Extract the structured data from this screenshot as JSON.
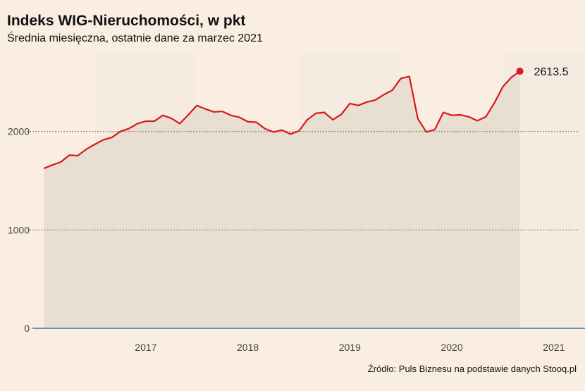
{
  "title": "Indeks WIG-Nieruchomości, w pkt",
  "subtitle": "Średnia miesięczna, ostatnie dane za marzec 2021",
  "source": "Źródło: Puls Biznesu na podstawie danych Stooq.pl",
  "colors": {
    "background": "#faeee2",
    "line": "#d7191c",
    "area": "#e8ded2",
    "band": "#f6ebe0",
    "baseline": "#3a7ca5",
    "grid": "#777777"
  },
  "chart_data": {
    "type": "area",
    "title": "Indeks WIG-Nieruchomości, w pkt",
    "subtitle": "Średnia miesięczna, ostatnie dane za marzec 2021",
    "xlabel": "",
    "ylabel": "",
    "ylim": [
      0,
      2800
    ],
    "xlim": [
      "2016-05",
      "2021-10"
    ],
    "yticks": [
      0,
      1000,
      2000
    ],
    "xticks": [
      "2017",
      "2018",
      "2019",
      "2020",
      "2021"
    ],
    "grid": "horizontal dotted",
    "last_value_label": "2613.5",
    "series": [
      {
        "x": [
          "2016-07",
          "2016-08",
          "2016-09",
          "2016-10",
          "2016-11",
          "2016-12",
          "2017-01",
          "2017-02",
          "2017-03",
          "2017-04",
          "2017-05",
          "2017-06",
          "2017-07",
          "2017-08",
          "2017-09",
          "2017-10",
          "2017-11",
          "2017-12",
          "2018-01",
          "2018-02",
          "2018-03",
          "2018-04",
          "2018-05",
          "2018-06",
          "2018-07",
          "2018-08",
          "2018-09",
          "2018-10",
          "2018-11",
          "2018-12",
          "2019-01",
          "2019-02",
          "2019-03",
          "2019-04",
          "2019-05",
          "2019-06",
          "2019-07",
          "2019-08",
          "2019-09",
          "2019-10",
          "2019-11",
          "2019-12",
          "2020-01",
          "2020-02",
          "2020-03",
          "2020-04",
          "2020-05",
          "2020-06",
          "2020-07",
          "2020-08",
          "2020-09",
          "2020-10",
          "2020-11",
          "2020-12",
          "2021-01",
          "2021-02",
          "2021-03"
        ],
        "values": [
          1625,
          1660,
          1690,
          1760,
          1755,
          1820,
          1870,
          1915,
          1940,
          2000,
          2030,
          2080,
          2105,
          2105,
          2165,
          2135,
          2080,
          2170,
          2265,
          2230,
          2200,
          2205,
          2165,
          2145,
          2100,
          2095,
          2030,
          1995,
          2015,
          1975,
          2005,
          2120,
          2185,
          2195,
          2120,
          2175,
          2285,
          2265,
          2300,
          2320,
          2375,
          2420,
          2540,
          2560,
          2130,
          1995,
          2020,
          2195,
          2165,
          2170,
          2150,
          2110,
          2150,
          2290,
          2455,
          2550,
          2613.5
        ]
      }
    ]
  }
}
